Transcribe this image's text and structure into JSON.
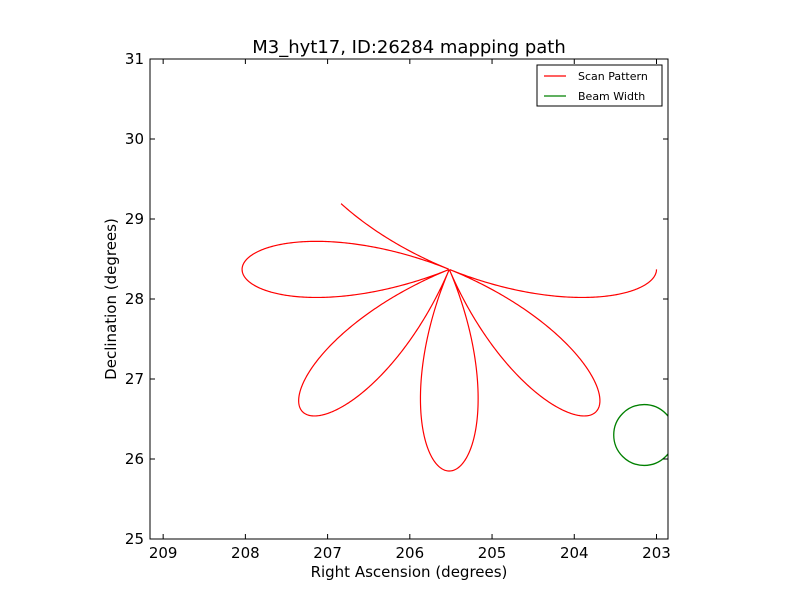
{
  "chart_data": {
    "type": "line",
    "title": "M3_hyt17, ID:26284 mapping path",
    "xlabel": "Right Ascension (degrees)",
    "ylabel": "Declination (degrees)",
    "xlim": [
      209.16,
      202.86
    ],
    "ylim": [
      25,
      31
    ],
    "x_inverted": true,
    "xticks": [
      209,
      208,
      207,
      206,
      205,
      204,
      203
    ],
    "yticks": [
      25,
      26,
      27,
      28,
      29,
      30,
      31
    ],
    "grid": false,
    "legend_position": "top-right",
    "scan_pattern": {
      "name": "Scan Pattern",
      "color": "#ff0000",
      "center": [
        205.52,
        28.37
      ],
      "petals": 8,
      "amplitude_deg": 2.52,
      "start_angle_deg": 180,
      "end_angle_deg": 392
    },
    "beam_width": {
      "name": "Beam Width",
      "color": "#008000",
      "center": [
        203.15,
        26.3
      ],
      "radius_deg": 0.37
    }
  }
}
